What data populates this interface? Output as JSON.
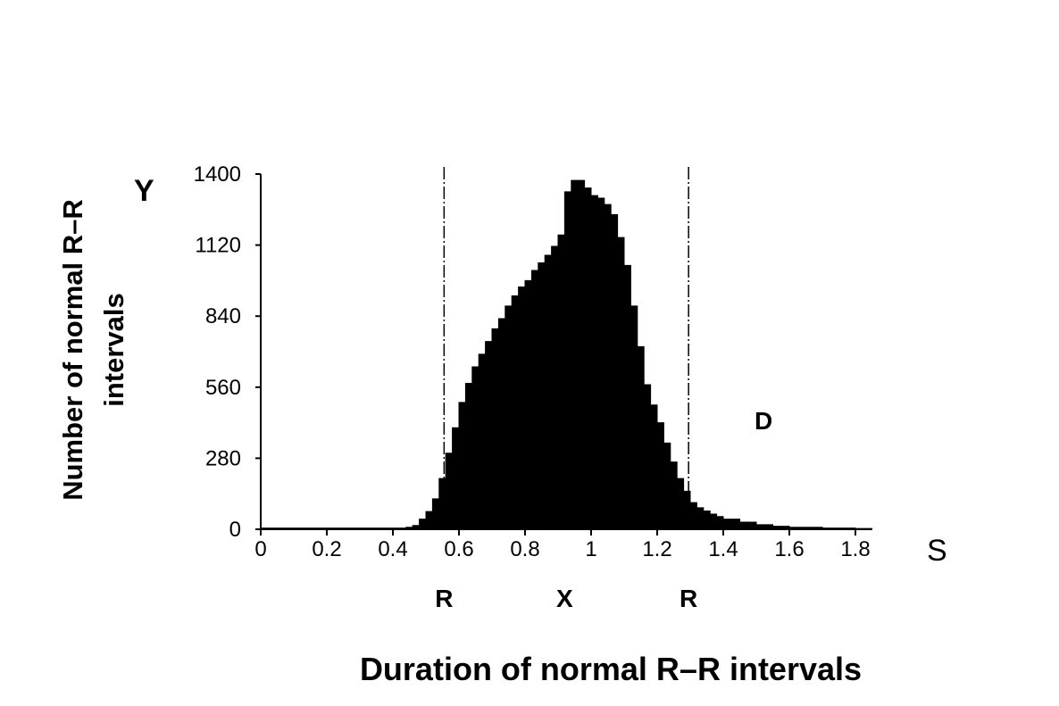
{
  "chart_data": {
    "type": "area",
    "title": "",
    "xlabel": "Duration of normal R–R intervals",
    "ylabel_line1": "Number of normal R–R",
    "ylabel_line2": "intervals",
    "x_axis_letter": "S",
    "y_axis_letter": "Y",
    "xlim": [
      0,
      1.85
    ],
    "ylim": [
      0,
      1400
    ],
    "x_ticks": [
      0,
      0.2,
      0.4,
      0.6,
      0.8,
      1,
      1.2,
      1.4,
      1.6,
      1.8
    ],
    "x_tick_labels": [
      "0",
      "0.2",
      "0.4",
      "0.6",
      "0.8",
      "1",
      "1.2",
      "1.4",
      "1.6",
      "1.8"
    ],
    "y_ticks": [
      0,
      280,
      560,
      840,
      1120,
      1400
    ],
    "y_tick_labels": [
      "0",
      "280",
      "560",
      "840",
      "1120",
      "1400"
    ],
    "grid": false,
    "series": [
      {
        "color": "#000000",
        "x": [
          0,
          0.4,
          0.44,
          0.46,
          0.48,
          0.5,
          0.52,
          0.54,
          0.56,
          0.58,
          0.6,
          0.62,
          0.64,
          0.66,
          0.68,
          0.7,
          0.72,
          0.74,
          0.76,
          0.78,
          0.8,
          0.82,
          0.84,
          0.86,
          0.88,
          0.9,
          0.92,
          0.94,
          0.96,
          0.98,
          1.0,
          1.02,
          1.04,
          1.06,
          1.08,
          1.1,
          1.12,
          1.14,
          1.16,
          1.18,
          1.2,
          1.22,
          1.24,
          1.26,
          1.28,
          1.3,
          1.32,
          1.34,
          1.36,
          1.38,
          1.4,
          1.45,
          1.5,
          1.55,
          1.6,
          1.7,
          1.8,
          1.85
        ],
        "values": [
          5,
          5,
          8,
          15,
          40,
          70,
          120,
          200,
          300,
          400,
          500,
          575,
          640,
          690,
          740,
          790,
          830,
          880,
          920,
          955,
          980,
          1020,
          1050,
          1080,
          1115,
          1160,
          1330,
          1375,
          1375,
          1345,
          1315,
          1305,
          1280,
          1240,
          1150,
          1040,
          880,
          720,
          570,
          490,
          420,
          340,
          265,
          200,
          150,
          105,
          85,
          72,
          60,
          50,
          40,
          28,
          18,
          12,
          8,
          5,
          3,
          3
        ]
      }
    ],
    "vlines": [
      {
        "x": 0.555,
        "label": "R"
      },
      {
        "x": 1.295,
        "label": "R"
      }
    ],
    "markers": [
      {
        "x": 0.92,
        "label": "X"
      }
    ],
    "annotation": "D"
  }
}
